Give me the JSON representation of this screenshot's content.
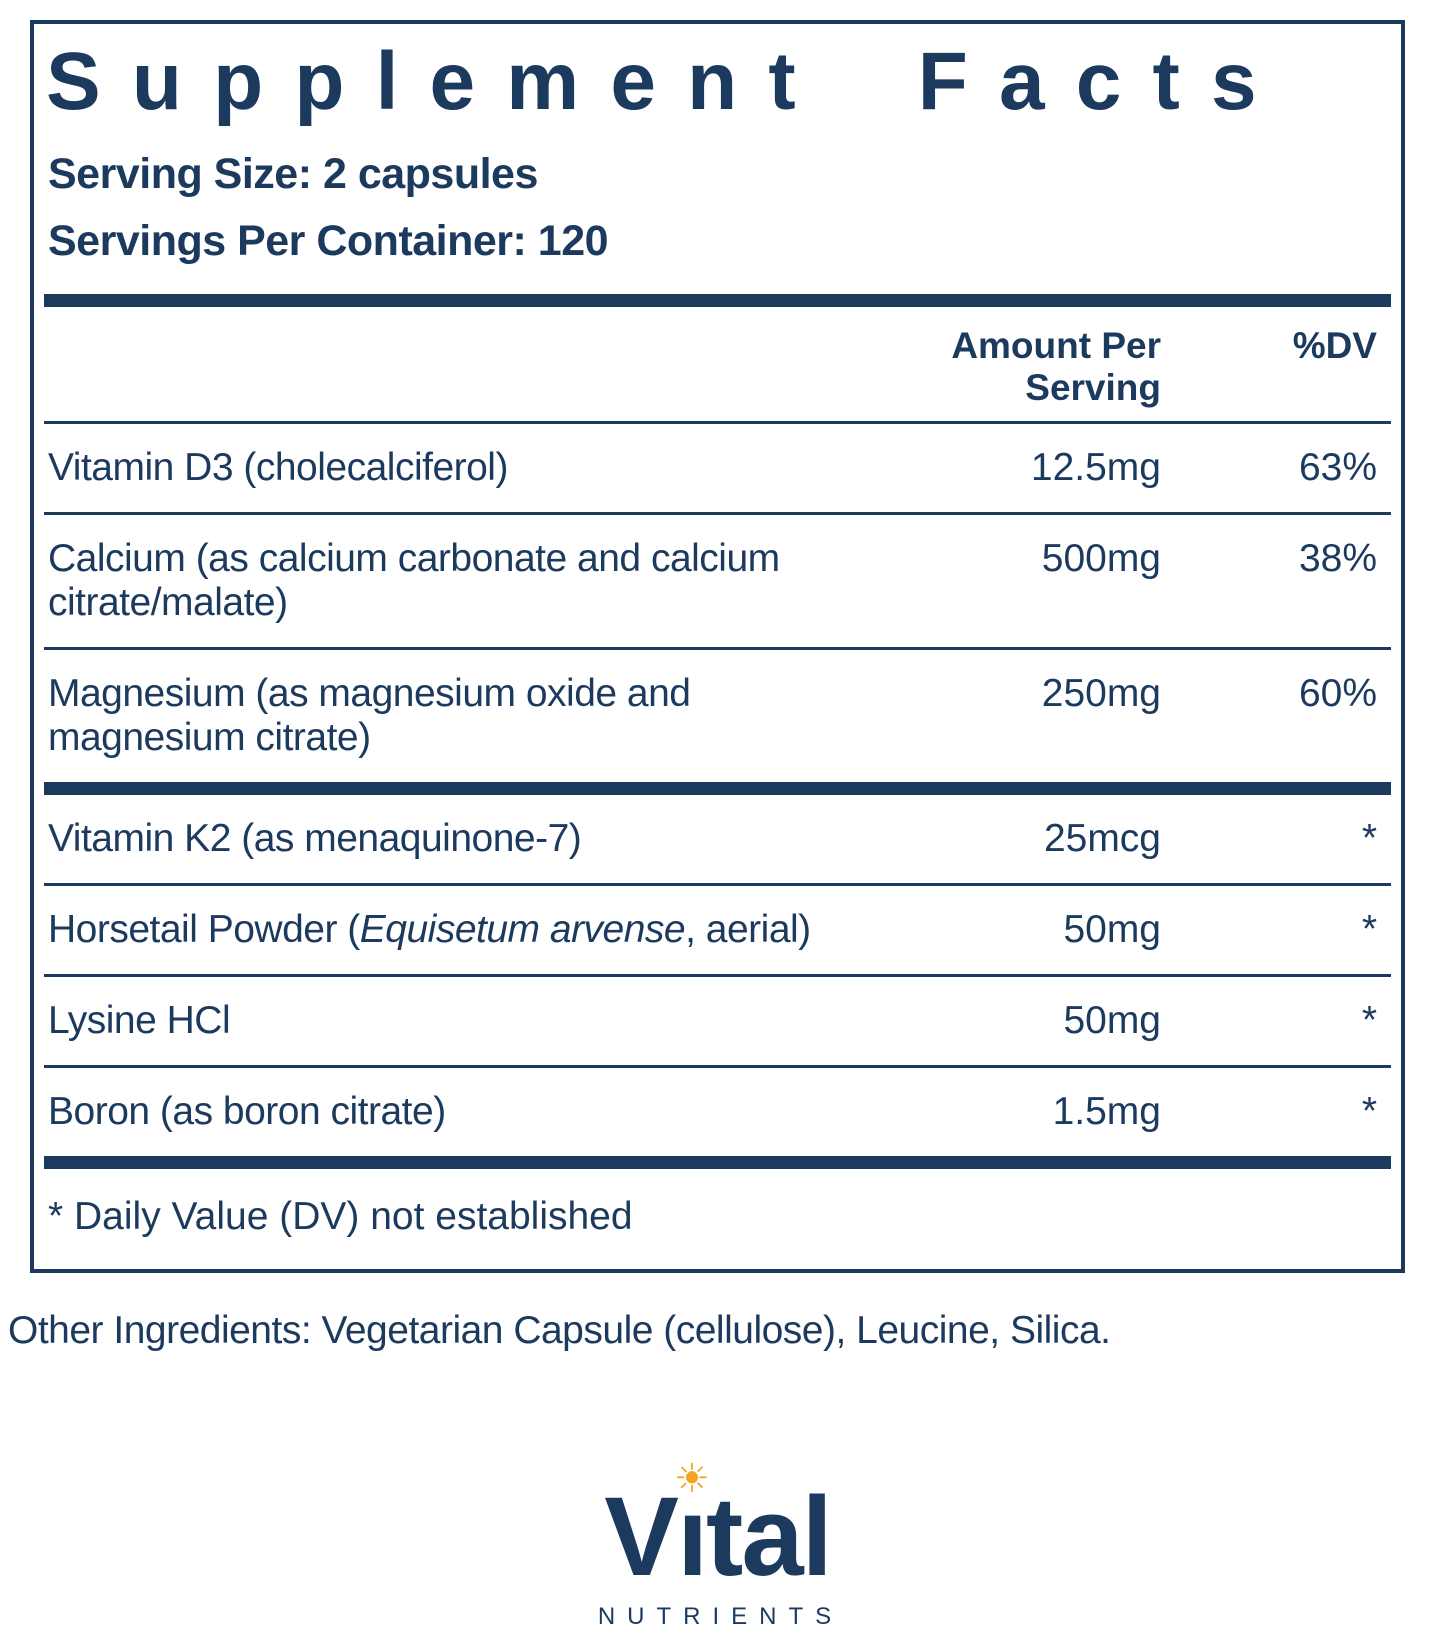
{
  "colors": {
    "navy": "#1c3a5e",
    "accent": "#f5a41f"
  },
  "panel": {
    "title": "Supplement Facts",
    "serving_size": "Serving Size: 2 capsules",
    "servings_per_container": "Servings Per Container: 120",
    "columns": {
      "amount": "Amount Per Serving",
      "dv": "%DV"
    },
    "rows": [
      {
        "name_pre": "Vitamin D3 (cholecalciferol)",
        "name_italic": "",
        "name_post": "",
        "amount": "12.5mg",
        "dv": "63%"
      },
      {
        "name_pre": "Calcium (as calcium carbonate and calcium citrate/malate)",
        "name_italic": "",
        "name_post": "",
        "amount": "500mg",
        "dv": "38%"
      },
      {
        "name_pre": "Magnesium (as magnesium oxide and magnesium citrate)",
        "name_italic": "",
        "name_post": "",
        "amount": "250mg",
        "dv": "60%"
      },
      {
        "name_pre": "Vitamin K2 (as menaquinone-7)",
        "name_italic": "",
        "name_post": "",
        "amount": "25mcg",
        "dv": "*"
      },
      {
        "name_pre": "Horsetail Powder (",
        "name_italic": "Equisetum arvense",
        "name_post": ", aerial)",
        "amount": "50mg",
        "dv": "*"
      },
      {
        "name_pre": "Lysine HCl",
        "name_italic": "",
        "name_post": "",
        "amount": "50mg",
        "dv": "*"
      },
      {
        "name_pre": "Boron (as boron citrate)",
        "name_italic": "",
        "name_post": "",
        "amount": "1.5mg",
        "dv": "*"
      }
    ],
    "footnote": "* Daily Value (DV) not established"
  },
  "other_ingredients": "Other Ingredients: Vegetarian Capsule (cellulose), Leucine, Silica.",
  "logo": {
    "wordmark": "Vital",
    "subtext": "NUTRIENTS",
    "sun_glyph": "☀"
  }
}
